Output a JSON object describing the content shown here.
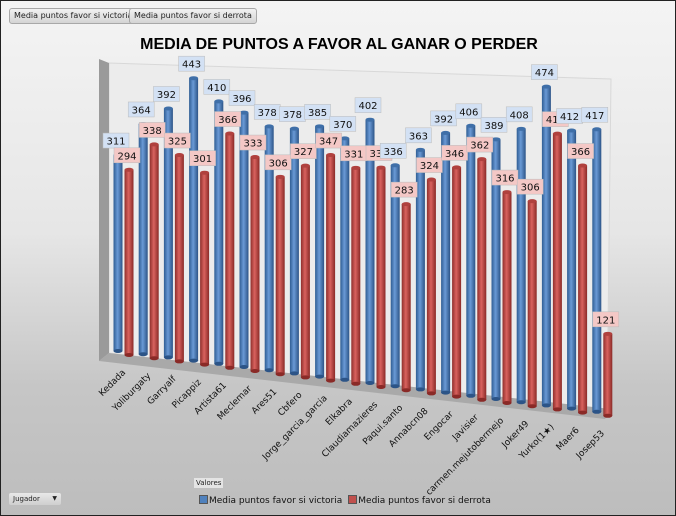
{
  "field_buttons": [
    "Media puntos favor si victoria",
    "Media puntos favor si derrota"
  ],
  "values_label": "Valores",
  "row_field": {
    "label": "Jugador",
    "icon": "dropdown-arrow-icon"
  },
  "colors": {
    "victoria": "#4f81bd",
    "derrota": "#c0504d"
  },
  "chart_data": {
    "type": "bar",
    "title": "MEDIA DE PUNTOS A FAVOR AL GANAR O PERDER",
    "xlabel": "",
    "ylabel": "",
    "ylim": [
      0,
      500
    ],
    "legend_position": "bottom",
    "categories": [
      "Kedada",
      "Yoliburgaty",
      "Garryalf",
      "Picappiz",
      "Artista61",
      "Meclemar",
      "Ares51",
      "Cbfero",
      "Jorge_garcia_garcia",
      "Elkabra",
      "Claudiamazieres",
      "Paqui.santo",
      "Annabcn08",
      "Engocar",
      "Javisier",
      "carmen.mejutobermejo",
      "Joker49",
      "Yurko(1★)",
      "Maer6",
      "Josep53"
    ],
    "series": [
      {
        "name": "Media puntos favor si victoria",
        "values": [
          311,
          364,
          392,
          443,
          410,
          396,
          378,
          378,
          385,
          370,
          402,
          336,
          363,
          392,
          406,
          389,
          408,
          474,
          412,
          417
        ]
      },
      {
        "name": "Media puntos favor si derrota",
        "values": [
          294,
          338,
          325,
          301,
          366,
          333,
          306,
          327,
          347,
          331,
          335,
          283,
          324,
          346,
          362,
          316,
          306,
          410,
          366,
          121
        ]
      }
    ]
  }
}
